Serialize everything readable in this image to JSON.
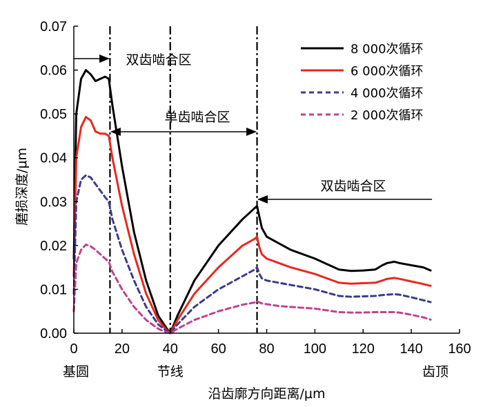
{
  "chart_data": {
    "type": "line",
    "xlabel": "沿齿廓方向距离/μm",
    "ylabel": "磨损深度/μm",
    "xlim": [
      0,
      160
    ],
    "ylim": [
      0,
      0.07
    ],
    "x_ticks": [
      "0",
      "20",
      "40",
      "60",
      "80",
      "100",
      "120",
      "140",
      "160"
    ],
    "y_ticks": [
      "0.00",
      "0.01",
      "0.02",
      "0.03",
      "0.04",
      "0.05",
      "0.06",
      "0.07"
    ],
    "x_end_labels": {
      "base_circle": "基圆",
      "pitch_line": "节线",
      "tooth_tip": "齿顶"
    },
    "regions": [
      {
        "label": "双齿啮合区",
        "from": 0,
        "to": 15
      },
      {
        "label": "单齿啮合区",
        "from": 15,
        "to": 76
      },
      {
        "label": "双齿啮合区",
        "from": 76,
        "to": 148
      }
    ],
    "boundaries_x": [
      15,
      40,
      76
    ],
    "legend_position": "top-right",
    "series": [
      {
        "name": "8 000次循环",
        "color": "#000000",
        "style": "solid",
        "x": [
          0,
          1,
          3,
          5,
          7,
          9,
          11,
          13,
          14.5,
          16,
          20,
          25,
          30,
          35,
          38,
          40,
          43,
          50,
          60,
          70,
          75,
          76,
          77,
          78,
          80,
          85,
          90,
          100,
          110,
          115,
          120,
          125,
          128,
          130,
          133,
          135,
          140,
          145,
          148
        ],
        "y": [
          0.017,
          0.05,
          0.058,
          0.06,
          0.059,
          0.0575,
          0.058,
          0.0585,
          0.058,
          0.052,
          0.038,
          0.023,
          0.012,
          0.004,
          0.0015,
          0.0,
          0.004,
          0.012,
          0.02,
          0.026,
          0.0285,
          0.029,
          0.0265,
          0.024,
          0.022,
          0.0205,
          0.019,
          0.017,
          0.0145,
          0.0142,
          0.0143,
          0.0145,
          0.0155,
          0.016,
          0.0163,
          0.016,
          0.0155,
          0.015,
          0.0143
        ]
      },
      {
        "name": "6 000次循环",
        "color": "#e8281e",
        "style": "solid",
        "x": [
          0,
          1,
          3,
          5,
          7,
          9,
          11,
          13,
          14.5,
          16,
          20,
          25,
          30,
          35,
          38,
          40,
          43,
          50,
          60,
          70,
          75,
          76,
          77,
          78,
          80,
          85,
          90,
          100,
          110,
          115,
          120,
          125,
          128,
          130,
          133,
          135,
          140,
          145,
          148
        ],
        "y": [
          0.013,
          0.04,
          0.047,
          0.0493,
          0.0485,
          0.046,
          0.0455,
          0.0455,
          0.045,
          0.04,
          0.029,
          0.018,
          0.009,
          0.003,
          0.001,
          0.0,
          0.003,
          0.009,
          0.015,
          0.02,
          0.0215,
          0.022,
          0.0195,
          0.018,
          0.017,
          0.016,
          0.015,
          0.0135,
          0.0115,
          0.0113,
          0.0114,
          0.0115,
          0.012,
          0.0124,
          0.0126,
          0.0124,
          0.0118,
          0.0112,
          0.0108
        ]
      },
      {
        "name": "4 000次循环",
        "color": "#3b3b8f",
        "style": "dashed",
        "x": [
          0,
          1,
          3,
          5,
          7,
          9,
          11,
          13,
          14.5,
          16,
          20,
          25,
          30,
          35,
          38,
          40,
          43,
          50,
          60,
          70,
          75,
          76,
          77,
          78,
          80,
          85,
          90,
          100,
          110,
          115,
          120,
          125,
          128,
          130,
          133,
          135,
          140,
          145,
          148
        ],
        "y": [
          0.009,
          0.03,
          0.035,
          0.036,
          0.0355,
          0.034,
          0.0325,
          0.031,
          0.03,
          0.026,
          0.019,
          0.012,
          0.006,
          0.002,
          0.0007,
          0.0,
          0.002,
          0.006,
          0.01,
          0.013,
          0.0145,
          0.015,
          0.0135,
          0.0125,
          0.012,
          0.0115,
          0.011,
          0.01,
          0.0085,
          0.0083,
          0.0084,
          0.0085,
          0.0087,
          0.0088,
          0.0089,
          0.0088,
          0.0082,
          0.0075,
          0.0071
        ]
      },
      {
        "name": "2 000次循环",
        "color": "#c0428e",
        "style": "dashed",
        "x": [
          0,
          1,
          3,
          5,
          7,
          9,
          11,
          13,
          14.5,
          16,
          20,
          25,
          30,
          35,
          38,
          40,
          43,
          50,
          60,
          70,
          75,
          76,
          77,
          78,
          80,
          85,
          90,
          100,
          110,
          115,
          120,
          125,
          128,
          130,
          133,
          135,
          140,
          145,
          148
        ],
        "y": [
          0.005,
          0.016,
          0.019,
          0.0202,
          0.0198,
          0.019,
          0.018,
          0.017,
          0.0163,
          0.014,
          0.01,
          0.006,
          0.003,
          0.001,
          0.0003,
          0.0,
          0.001,
          0.003,
          0.005,
          0.0065,
          0.007,
          0.0073,
          0.007,
          0.0068,
          0.0066,
          0.0062,
          0.006,
          0.0056,
          0.0048,
          0.0047,
          0.0047,
          0.0048,
          0.0048,
          0.0048,
          0.0048,
          0.0047,
          0.0042,
          0.0036,
          0.0031
        ]
      }
    ]
  }
}
